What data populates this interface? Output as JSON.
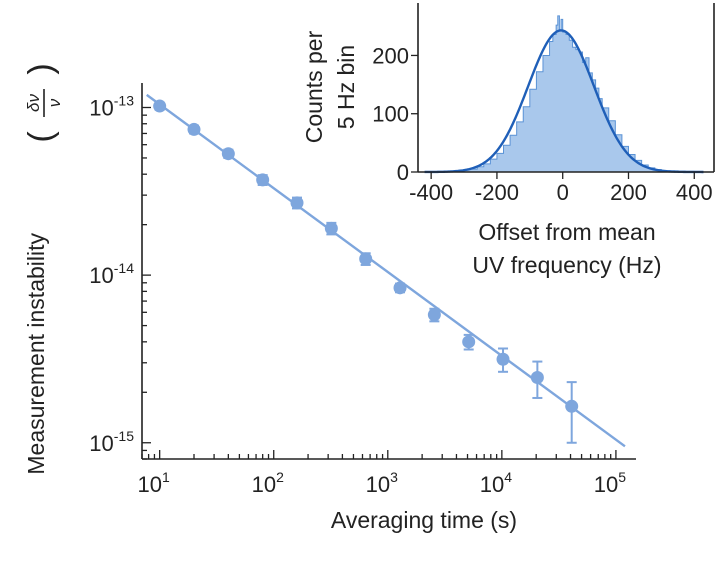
{
  "colors": {
    "marker": "#7ea6dd",
    "fit_line": "#7ea6dd",
    "hist_fill": "#a9c8ec",
    "hist_edge": "#5b93d6",
    "gauss_line": "#1f5fb8",
    "axis": "#222222"
  },
  "chart_data": [
    {
      "type": "scatter",
      "subtype": "allan-deviation-loglog",
      "xscale": "log",
      "yscale": "log",
      "xlabel": "Averaging time (s)",
      "ylabel": "Measurement instability",
      "ylabel_symbol": {
        "numerator": "δν",
        "denominator": "ν"
      },
      "xlim": [
        7,
        150000
      ],
      "ylim": [
        8e-16,
        1.4e-13
      ],
      "xticks": [
        {
          "base": "10",
          "exp": "1",
          "value": 10
        },
        {
          "base": "10",
          "exp": "2",
          "value": 100
        },
        {
          "base": "10",
          "exp": "3",
          "value": 1000
        },
        {
          "base": "10",
          "exp": "4",
          "value": 10000
        },
        {
          "base": "10",
          "exp": "5",
          "value": 100000
        }
      ],
      "yticks": [
        {
          "base": "10",
          "exp": "-13",
          "value": 1e-13
        },
        {
          "base": "10",
          "exp": "-14",
          "value": 1e-14
        },
        {
          "base": "10",
          "exp": "-15",
          "value": 1e-15
        }
      ],
      "series": [
        {
          "points": [
            {
              "x": 10,
              "y": 1.02e-13,
              "yerr": 5e-15
            },
            {
              "x": 20,
              "y": 7.4e-14,
              "yerr": 4e-15
            },
            {
              "x": 40,
              "y": 5.3e-14,
              "yerr": 3e-15
            },
            {
              "x": 80,
              "y": 3.7e-14,
              "yerr": 2.5e-15
            },
            {
              "x": 160,
              "y": 2.7e-14,
              "yerr": 2e-15
            },
            {
              "x": 320,
              "y": 1.9e-14,
              "yerr": 1.5e-15
            },
            {
              "x": 640,
              "y": 1.25e-14,
              "yerr": 1e-15
            },
            {
              "x": 1280,
              "y": 8.4e-15,
              "yerr": 5e-16
            },
            {
              "x": 2560,
              "y": 5.8e-15,
              "yerr": 5e-16
            },
            {
              "x": 5120,
              "y": 4e-15,
              "yerr": 4e-16
            },
            {
              "x": 10240,
              "y": 3.15e-15,
              "yerr": 5e-16
            },
            {
              "x": 20480,
              "y": 2.45e-15,
              "yerr": 6e-16
            },
            {
              "x": 40960,
              "y": 1.65e-15,
              "yerr": 6.5e-16
            }
          ]
        }
      ],
      "fit": {
        "type": "power-law",
        "amplitude": 3.3e-13,
        "exponent": -0.5,
        "x_range": [
          7.7,
          120000
        ]
      }
    },
    {
      "type": "histogram",
      "xlabel_lines": [
        "Offset from mean",
        "UV frequency (Hz)"
      ],
      "ylabel_lines": [
        "Counts per",
        "5 Hz bin"
      ],
      "xlim": [
        -440,
        460
      ],
      "ylim": [
        0,
        290
      ],
      "xticks": [
        -400,
        -200,
        0,
        200,
        400
      ],
      "yticks": [
        0,
        100,
        200
      ],
      "bin_width": 5,
      "gaussian_fit": {
        "amplitude": 243,
        "mean": -5,
        "sigma": 100
      },
      "counts": [
        {
          "x": -400,
          "c": 0
        },
        {
          "x": -350,
          "c": 1
        },
        {
          "x": -300,
          "c": 4
        },
        {
          "x": -280,
          "c": 5
        },
        {
          "x": -260,
          "c": 9
        },
        {
          "x": -240,
          "c": 14
        },
        {
          "x": -220,
          "c": 22
        },
        {
          "x": -200,
          "c": 32
        },
        {
          "x": -180,
          "c": 46
        },
        {
          "x": -160,
          "c": 63
        },
        {
          "x": -140,
          "c": 86
        },
        {
          "x": -120,
          "c": 112
        },
        {
          "x": -100,
          "c": 142
        },
        {
          "x": -80,
          "c": 172
        },
        {
          "x": -60,
          "c": 200
        },
        {
          "x": -40,
          "c": 224
        },
        {
          "x": -30,
          "c": 236
        },
        {
          "x": -20,
          "c": 252
        },
        {
          "x": -15,
          "c": 268
        },
        {
          "x": -10,
          "c": 244
        },
        {
          "x": -5,
          "c": 262
        },
        {
          "x": 0,
          "c": 240
        },
        {
          "x": 10,
          "c": 236
        },
        {
          "x": 20,
          "c": 226
        },
        {
          "x": 30,
          "c": 214
        },
        {
          "x": 40,
          "c": 210
        },
        {
          "x": 50,
          "c": 206
        },
        {
          "x": 60,
          "c": 188
        },
        {
          "x": 70,
          "c": 196
        },
        {
          "x": 80,
          "c": 170
        },
        {
          "x": 90,
          "c": 158
        },
        {
          "x": 100,
          "c": 144
        },
        {
          "x": 110,
          "c": 126
        },
        {
          "x": 120,
          "c": 110
        },
        {
          "x": 140,
          "c": 88
        },
        {
          "x": 160,
          "c": 64
        },
        {
          "x": 180,
          "c": 44
        },
        {
          "x": 200,
          "c": 30
        },
        {
          "x": 220,
          "c": 20
        },
        {
          "x": 240,
          "c": 12
        },
        {
          "x": 260,
          "c": 7
        },
        {
          "x": 280,
          "c": 4
        },
        {
          "x": 300,
          "c": 2
        },
        {
          "x": 350,
          "c": 1
        },
        {
          "x": 400,
          "c": 0
        }
      ]
    }
  ]
}
